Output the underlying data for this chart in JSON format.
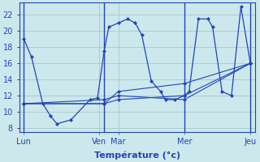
{
  "background_color": "#cce8ec",
  "grid_color": "#aacdd0",
  "line_color": "#2244bb",
  "xlabel": "Température (°c)",
  "xlabel_fontsize": 8,
  "ylim": [
    7.5,
    23.5
  ],
  "yticks": [
    8,
    10,
    12,
    14,
    16,
    18,
    20,
    22
  ],
  "xlim": [
    -0.5,
    24.5
  ],
  "day_labels": [
    "Lun",
    "Ven",
    "Mar",
    "Mer",
    "Jeu"
  ],
  "day_x": [
    0,
    8,
    10,
    17,
    24
  ],
  "vline_x": [
    0,
    8.5,
    17,
    24
  ],
  "line1_x": [
    0,
    0.8,
    2,
    2.8,
    3.5,
    5,
    7,
    7.8,
    8.5,
    9,
    10,
    11,
    11.8,
    12.5,
    13.5,
    14.5,
    15,
    16,
    17,
    17.5,
    18.5,
    19.5,
    20,
    21,
    22,
    23,
    24
  ],
  "line1_y": [
    19.0,
    16.8,
    11.0,
    9.5,
    8.5,
    9.0,
    11.5,
    11.7,
    17.5,
    20.5,
    21.0,
    21.5,
    21.0,
    19.5,
    13.8,
    12.5,
    11.5,
    11.5,
    12.0,
    12.5,
    21.5,
    21.5,
    20.5,
    12.5,
    12.0,
    23.0,
    16.0
  ],
  "line2_x": [
    0,
    8.5,
    10,
    17,
    24
  ],
  "line2_y": [
    11.0,
    11.0,
    11.5,
    12.0,
    16.0
  ],
  "line3_x": [
    0,
    8.5,
    10,
    17,
    24
  ],
  "line3_y": [
    11.0,
    11.5,
    12.0,
    11.5,
    16.0
  ],
  "line4_x": [
    0,
    8.5,
    10,
    17,
    24
  ],
  "line4_y": [
    11.0,
    11.0,
    12.5,
    13.5,
    16.0
  ]
}
